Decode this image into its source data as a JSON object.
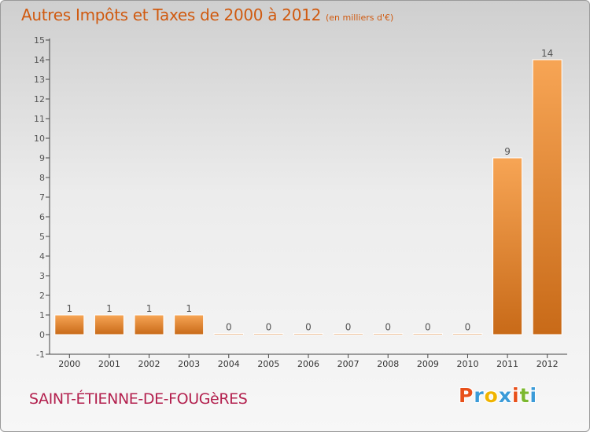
{
  "header": {
    "title": "Autres Impôts et Taxes de 2000 à 2012",
    "unit": "(en milliers d'€)"
  },
  "footer": {
    "commune": "SAINT-ÉTIENNE-DE-FOUGèRES",
    "logo_letters": [
      "P",
      "r",
      "o",
      "x",
      "i",
      "t",
      "i"
    ],
    "logo_colors": [
      "#e8501a",
      "#3b9bd8",
      "#f0b400",
      "#3b9bd8",
      "#e8501a",
      "#7cb82f",
      "#3b9bd8"
    ]
  },
  "colors": {
    "bar_fill_top": "#f7a555",
    "bar_fill_bottom": "#c86a18",
    "bar_stroke": "#ffffff",
    "label": "#555555",
    "title": "#d05a10",
    "commune": "#b3204e"
  },
  "chart_data": {
    "type": "bar",
    "title": "Autres Impôts et Taxes de 2000 à 2012",
    "xlabel": "",
    "ylabel": "",
    "categories": [
      "2000",
      "2001",
      "2002",
      "2003",
      "2004",
      "2005",
      "2006",
      "2007",
      "2008",
      "2009",
      "2010",
      "2011",
      "2012"
    ],
    "values": [
      1,
      1,
      1,
      1,
      0,
      0,
      0,
      0,
      0,
      0,
      0,
      9,
      14
    ],
    "data_labels": [
      "1",
      "1",
      "1",
      "1",
      "0",
      "0",
      "0",
      "0",
      "0",
      "0",
      "0",
      "9",
      "14"
    ],
    "ylim": [
      -1,
      15
    ],
    "yticks": [
      -1,
      0,
      1,
      2,
      3,
      4,
      5,
      6,
      7,
      8,
      9,
      10,
      11,
      12,
      13,
      14,
      15
    ],
    "grid": false,
    "legend": "none"
  }
}
